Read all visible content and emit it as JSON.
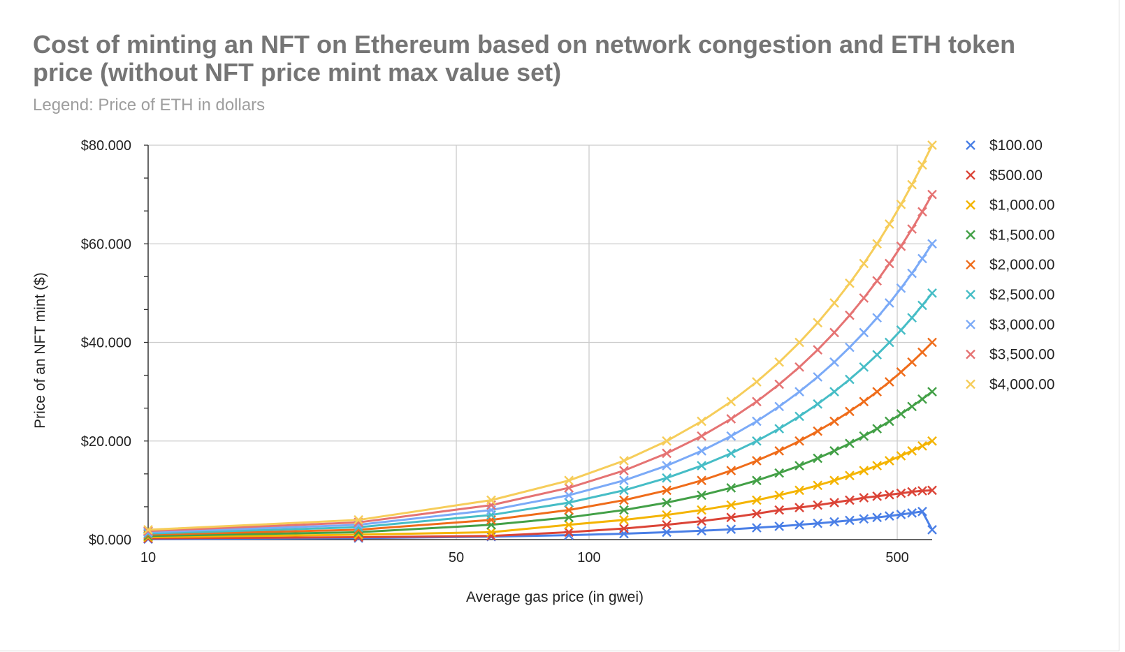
{
  "chart_data": {
    "type": "line",
    "title": "Cost of minting an NFT on Ethereum based on network congestion and ETH token price (without NFT price mint max value set)",
    "subtitle": "Legend: Price of ETH in dollars",
    "xlabel": "Average gas price (in gwei)",
    "ylabel": "Price of an NFT mint ($)",
    "x_scale": "log",
    "xlim": [
      10,
      600
    ],
    "ylim": [
      0,
      80
    ],
    "x_ticks": [
      10,
      50,
      100,
      500
    ],
    "x_tick_labels": [
      "10",
      "50",
      "100",
      "500"
    ],
    "y_ticks": [
      0,
      20,
      40,
      60,
      80
    ],
    "y_tick_labels": [
      "$0.000",
      "$20.000",
      "$40.000",
      "$60.000",
      "$80.000"
    ],
    "grid": true,
    "legend_position": "right",
    "marker": "x",
    "x": [
      10,
      30,
      60,
      90,
      120,
      150,
      180,
      210,
      240,
      270,
      300,
      330,
      360,
      390,
      420,
      450,
      480,
      510,
      540,
      570,
      600
    ],
    "series": [
      {
        "name": "$100.00",
        "color": "#4a7fe6",
        "values": [
          0.1,
          0.3,
          0.6,
          0.9,
          1.2,
          1.5,
          1.8,
          2.1,
          2.4,
          2.7,
          3.0,
          3.3,
          3.6,
          3.9,
          4.2,
          4.5,
          4.8,
          5.1,
          5.4,
          5.7,
          2.0
        ]
      },
      {
        "name": "$500.00",
        "color": "#db4437",
        "values": [
          0.25,
          0.5,
          0.75,
          1.5,
          2.25,
          3.0,
          3.75,
          4.5,
          5.25,
          6.0,
          6.5,
          7.0,
          7.5,
          8.0,
          8.5,
          8.8,
          9.1,
          9.4,
          9.7,
          9.9,
          10.0
        ]
      },
      {
        "name": "$1,000.00",
        "color": "#f4b400",
        "values": [
          0.5,
          1.0,
          1.5,
          3.0,
          4.0,
          5.0,
          6.0,
          7.0,
          8.0,
          9.0,
          10.0,
          11.0,
          12.0,
          13.0,
          14.0,
          15.0,
          16.0,
          17.0,
          18.0,
          19.0,
          20.0
        ]
      },
      {
        "name": "$1,500.00",
        "color": "#43a047",
        "values": [
          0.75,
          1.5,
          3.0,
          4.5,
          6.0,
          7.5,
          9.0,
          10.5,
          12.0,
          13.5,
          15.0,
          16.5,
          18.0,
          19.5,
          21.0,
          22.5,
          24.0,
          25.5,
          27.0,
          28.5,
          30.0
        ]
      },
      {
        "name": "$2,000.00",
        "color": "#ef6c1a",
        "values": [
          1.0,
          2.0,
          4.0,
          6.0,
          8.0,
          10.0,
          12.0,
          14.0,
          16.0,
          18.0,
          20.0,
          22.0,
          24.0,
          26.0,
          28.0,
          30.0,
          32.0,
          34.0,
          36.0,
          38.0,
          40.0
        ]
      },
      {
        "name": "$2,500.00",
        "color": "#46bdc6",
        "values": [
          1.25,
          2.5,
          5.0,
          7.5,
          10.0,
          12.5,
          15.0,
          17.5,
          20.0,
          22.5,
          25.0,
          27.5,
          30.0,
          32.5,
          35.0,
          37.5,
          40.0,
          42.5,
          45.0,
          47.5,
          50.0
        ]
      },
      {
        "name": "$3,000.00",
        "color": "#7baaf7",
        "values": [
          1.5,
          3.0,
          6.0,
          9.0,
          12.0,
          15.0,
          18.0,
          21.0,
          24.0,
          27.0,
          30.0,
          33.0,
          36.0,
          39.0,
          42.0,
          45.0,
          48.0,
          51.0,
          54.0,
          57.0,
          60.0
        ]
      },
      {
        "name": "$3,500.00",
        "color": "#e57373",
        "values": [
          1.75,
          3.5,
          7.0,
          10.5,
          14.0,
          17.5,
          21.0,
          24.5,
          28.0,
          31.5,
          35.0,
          38.5,
          42.0,
          45.5,
          49.0,
          52.5,
          56.0,
          59.5,
          63.0,
          66.5,
          70.0
        ]
      },
      {
        "name": "$4,000.00",
        "color": "#f6cd5a",
        "values": [
          2.0,
          4.0,
          8.0,
          12.0,
          16.0,
          20.0,
          24.0,
          28.0,
          32.0,
          36.0,
          40.0,
          44.0,
          48.0,
          52.0,
          56.0,
          60.0,
          64.0,
          68.0,
          72.0,
          76.0,
          80.0
        ]
      }
    ]
  }
}
